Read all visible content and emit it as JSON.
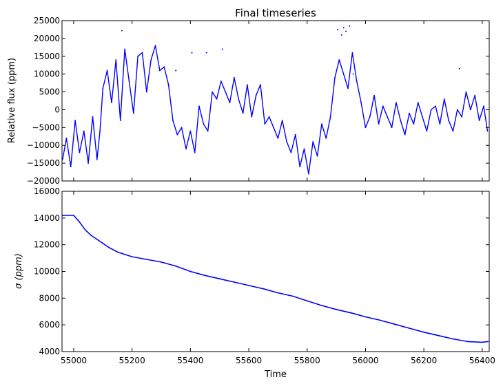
{
  "chart_data": [
    {
      "type": "scatter",
      "title": "Final timeseries",
      "xlabel": "",
      "ylabel": "Relative flux (ppm)",
      "xlim": [
        54960,
        56424
      ],
      "ylim": [
        -20000,
        25000
      ],
      "xticks": [
        55000,
        55200,
        55400,
        55600,
        55800,
        56000,
        56200,
        56400
      ],
      "yticks": [
        -20000,
        -15000,
        -10000,
        -5000,
        0,
        5000,
        10000,
        15000,
        20000,
        25000
      ],
      "ytick_labels": [
        "−20000",
        "−15000",
        "−10000",
        "−5000",
        "0",
        "5000",
        "10000",
        "15000",
        "20000",
        "25000"
      ],
      "grid": false,
      "series_color": "#0000ff",
      "series": [
        {
          "x": [
            54962,
            54975,
            54990,
            55005,
            55020,
            55035,
            55050,
            55065,
            55080,
            55090,
            55100,
            55115,
            55130,
            55145,
            55160,
            55175,
            55190,
            55205,
            55220,
            55235,
            55250,
            55265,
            55280,
            55295,
            55310,
            55325,
            55340,
            55355,
            55370,
            55385,
            55400,
            55415,
            55430,
            55445,
            55460,
            55475,
            55490,
            55505,
            55520,
            55535,
            55550,
            55565,
            55580,
            55595,
            55610,
            55625,
            55640,
            55655,
            55670,
            55685,
            55700,
            55715,
            55730,
            55745,
            55760,
            55775,
            55790,
            55805,
            55820,
            55835,
            55850,
            55865,
            55880,
            55895,
            55910,
            55925,
            55940,
            55955,
            55970,
            55985,
            56000,
            56015,
            56030,
            56045,
            56060,
            56075,
            56090,
            56105,
            56120,
            56135,
            56150,
            56165,
            56180,
            56195,
            56210,
            56225,
            56240,
            56255,
            56270,
            56285,
            56300,
            56315,
            56330,
            56345,
            56360,
            56375,
            56390,
            56405,
            56418
          ],
          "y": [
            -14000,
            -8000,
            -16000,
            -3000,
            -12000,
            -6000,
            -15000,
            -2000,
            -14000,
            -6000,
            6000,
            11000,
            2000,
            14000,
            -3000,
            17000,
            8000,
            -1000,
            15000,
            16000,
            5000,
            14000,
            18000,
            11000,
            12000,
            7000,
            -3000,
            -7000,
            -5000,
            -11000,
            -6000,
            -12000,
            1000,
            -4000,
            -6000,
            5000,
            3000,
            8000,
            5000,
            2000,
            9000,
            3000,
            -1000,
            7000,
            -2000,
            4000,
            7000,
            -4000,
            -2000,
            -5000,
            -8000,
            -3000,
            -9000,
            -12000,
            -7000,
            -16000,
            -11000,
            -18000,
            -9000,
            -13000,
            -4000,
            -8000,
            -2000,
            9000,
            14000,
            10000,
            6000,
            16000,
            8000,
            2000,
            -5000,
            -2000,
            4000,
            -4000,
            1000,
            -2000,
            -5000,
            2000,
            -3000,
            -7000,
            -1000,
            -4000,
            2000,
            -2000,
            -6000,
            0,
            1000,
            -4000,
            3000,
            -3000,
            -6000,
            0,
            -2000,
            5000,
            0,
            4000,
            -3000,
            1000,
            -6000
          ]
        }
      ],
      "outliers": {
        "x": [
          55165,
          55350,
          55405,
          55455,
          55510,
          55905,
          55918,
          55925,
          55933,
          55945,
          55958,
          56322
        ],
        "y": [
          22200,
          11000,
          16000,
          16000,
          17000,
          22500,
          21000,
          23000,
          22000,
          23500,
          10000,
          11500
        ]
      }
    },
    {
      "type": "line",
      "title": "",
      "xlabel": "Time",
      "ylabel": "σ (ppm)",
      "xlim": [
        54960,
        56424
      ],
      "ylim": [
        4000,
        16000
      ],
      "xticks": [
        55000,
        55200,
        55400,
        55600,
        55800,
        56000,
        56200,
        56400
      ],
      "yticks": [
        4000,
        6000,
        8000,
        10000,
        12000,
        14000,
        16000
      ],
      "grid": false,
      "series_color": "#0000ff",
      "series": [
        {
          "x": [
            54962,
            55000,
            55020,
            55040,
            55060,
            55080,
            55100,
            55120,
            55150,
            55200,
            55250,
            55300,
            55350,
            55400,
            55450,
            55500,
            55550,
            55600,
            55650,
            55700,
            55750,
            55800,
            55850,
            55900,
            55950,
            56000,
            56050,
            56100,
            56150,
            56200,
            56250,
            56300,
            56350,
            56400,
            56420
          ],
          "y": [
            14200,
            14200,
            13700,
            13100,
            12700,
            12400,
            12100,
            11800,
            11450,
            11100,
            10900,
            10700,
            10400,
            10000,
            9700,
            9450,
            9200,
            8950,
            8700,
            8400,
            8150,
            7800,
            7450,
            7150,
            6900,
            6600,
            6350,
            6050,
            5750,
            5450,
            5200,
            4950,
            4750,
            4700,
            4750
          ]
        }
      ]
    }
  ]
}
